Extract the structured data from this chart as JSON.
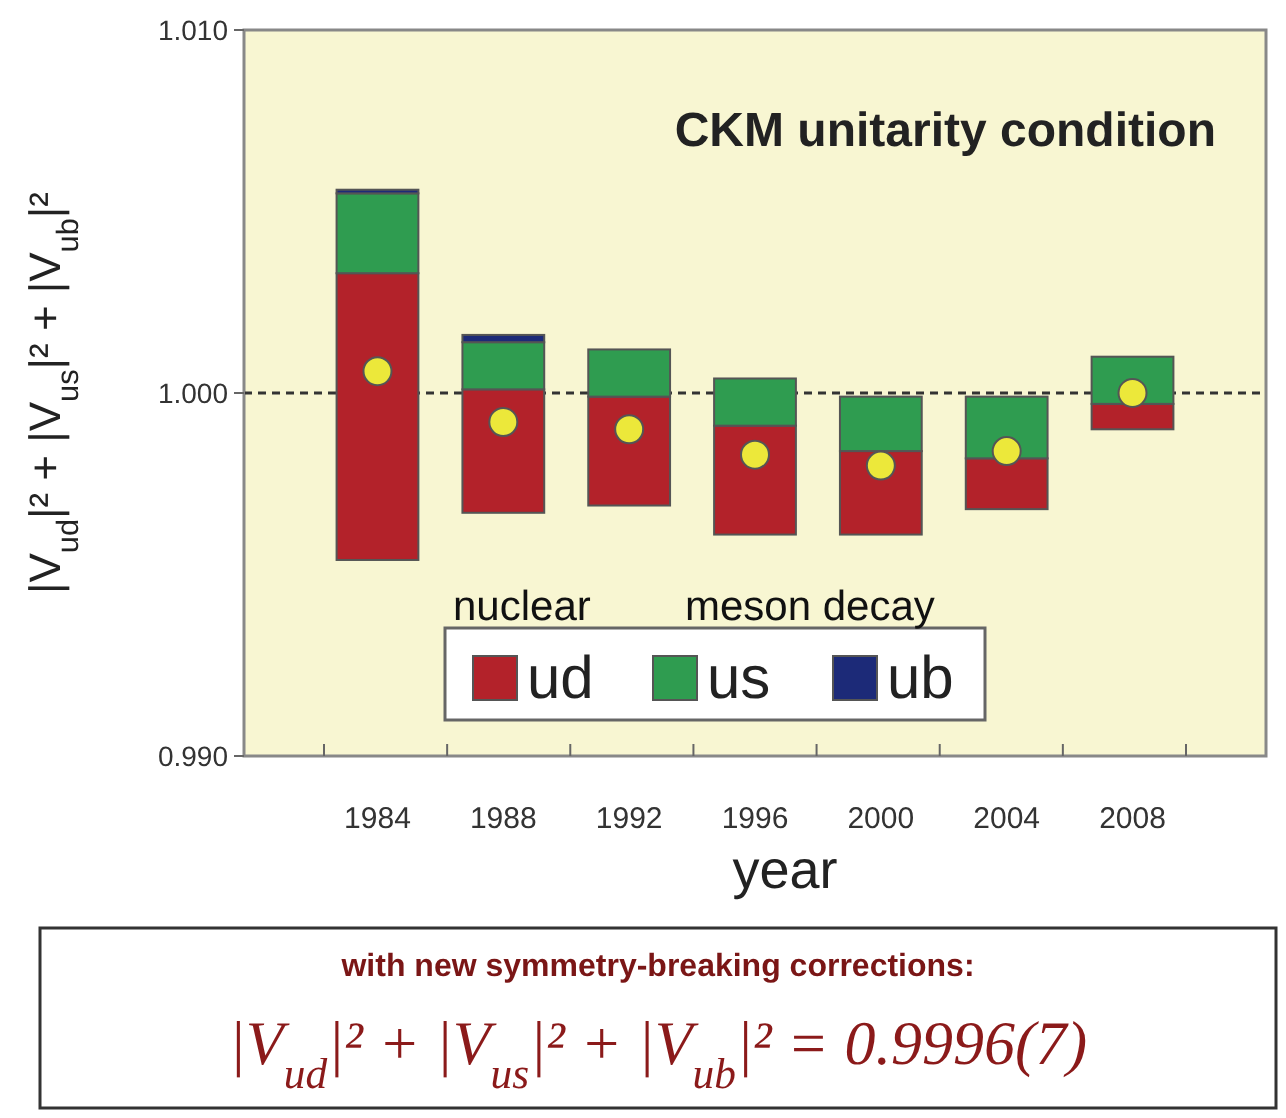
{
  "chart_data": {
    "type": "bar",
    "title": "CKM unitarity condition",
    "xlabel": "year",
    "ylabel": "|V$_{ud}$|² + |V$_{us}$|² + |V$_{ub}$|²",
    "categories": [
      "1984",
      "1988",
      "1992",
      "1996",
      "2000",
      "2004",
      "2008"
    ],
    "series": [
      {
        "name": "ud",
        "color": "#b3222a",
        "base": [
          0.9954,
          0.9967,
          0.9969,
          0.9961,
          0.9961,
          0.9968,
          0.999
        ],
        "values": [
          0.0079,
          0.0034,
          0.003,
          0.003,
          0.0023,
          0.0014,
          0.0007
        ]
      },
      {
        "name": "us",
        "color": "#2f9c50",
        "base": [
          1.0033,
          1.0001,
          0.9999,
          0.9991,
          0.9984,
          0.9982,
          0.9997
        ],
        "values": [
          0.0022,
          0.0013,
          0.0013,
          0.0013,
          0.0015,
          0.0017,
          0.0013
        ]
      },
      {
        "name": "ub",
        "color": "#1c2a78",
        "base": [
          1.0055,
          1.0014,
          null,
          null,
          null,
          null,
          null
        ],
        "values": [
          0.0001,
          0.0002,
          null,
          null,
          null,
          null,
          null
        ]
      },
      {
        "type": "scatter",
        "color": "#ece83a",
        "values": [
          1.0006,
          0.9992,
          0.999,
          0.9983,
          0.998,
          0.9984,
          1.0
        ]
      }
    ],
    "marker": "circle",
    "ylim": [
      0.99,
      1.01
    ],
    "yticks": [
      {
        "value": 0.99,
        "label": "0.990"
      },
      {
        "value": 1.0,
        "label": "1.000"
      },
      {
        "value": 1.01,
        "label": "1.010"
      }
    ],
    "ref_lines": [
      {
        "axis": "y",
        "value": 1.0,
        "line_style": "dashed",
        "color": "#333333"
      }
    ],
    "legend": "bottom",
    "annotations": [
      "nuclear",
      "meson decay",
      "with new symmetry-breaking corrections:",
      "|V$_{ud}$|² + |V$_{us}$|² + |V$_{ub}$|² = 0.9996(7)"
    ]
  }
}
